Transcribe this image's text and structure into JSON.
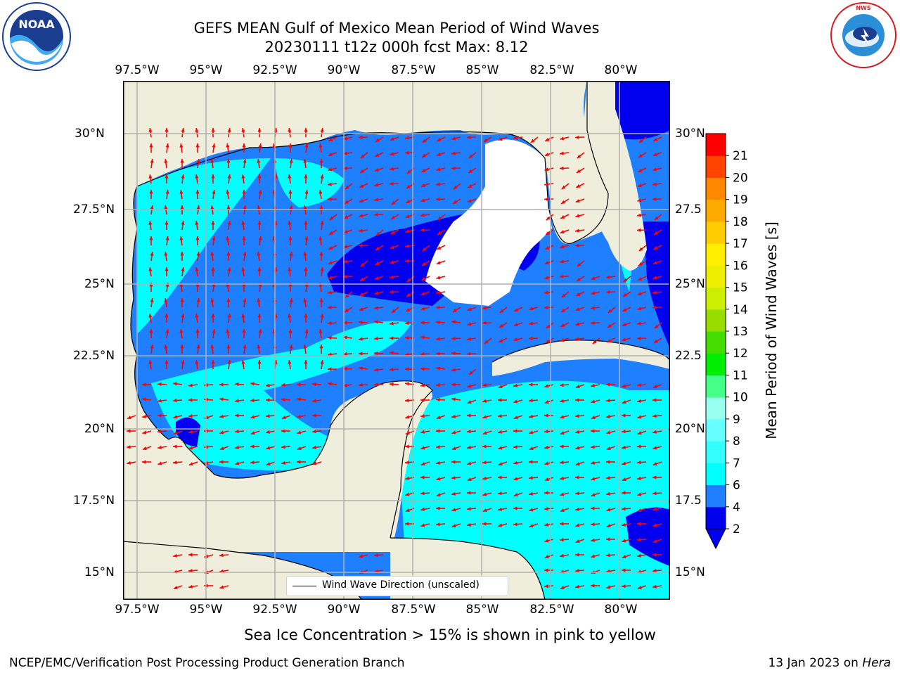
{
  "header": {
    "title_line1": "GEFS MEAN Gulf of Mexico Mean Period of Wind Waves",
    "title_line2": "20230111 t12z 000h fcst   Max: 8.12"
  },
  "logos": {
    "left_text": "NOAA",
    "left_ring_text": "NATIONAL OCEANIC AND ATMOSPHERIC ADMINISTRATION · U.S. DEPARTMENT OF COMMERCE",
    "right_ring_text": "NATIONAL WEATHER SERVICE"
  },
  "map": {
    "lon_ticks": [
      "97.5°W",
      "95°W",
      "92.5°W",
      "90°W",
      "87.5°W",
      "85°W",
      "82.5°W",
      "80°W"
    ],
    "lat_ticks_left": [
      "30°N",
      "27.5°N",
      "25°N",
      "22.5°N",
      "20°N",
      "17.5°N",
      "15°N"
    ],
    "lat_ticks_right": [
      "30°N",
      "27.5",
      "25°N",
      "22.5",
      "20°N",
      "17.5",
      "15°N"
    ],
    "legend_label": "Wind Wave Direction (unscaled)",
    "land_color": "#efeddb",
    "arrow_color": "#ff0000"
  },
  "colorbar": {
    "label": "Mean Period of Wind Waves [s]",
    "levels": [
      "2",
      "4",
      "6",
      "7",
      "8",
      "9",
      "10",
      "11",
      "12",
      "13",
      "14",
      "15",
      "16",
      "17",
      "18",
      "19",
      "20",
      "21"
    ],
    "colors": [
      "#0000ee",
      "#1e7fff",
      "#00ffff",
      "#33ffff",
      "#66ffff",
      "#99ffee",
      "#44ff88",
      "#00ee00",
      "#44dd00",
      "#99dd00",
      "#ccee00",
      "#eeee00",
      "#ffee00",
      "#ffcc00",
      "#ffaa00",
      "#ff8800",
      "#ff4400",
      "#ff0000"
    ]
  },
  "footer": {
    "ice_note": "Sea Ice Concentration > 15% is shown in pink to yellow",
    "left": "NCEP/EMC/Verification Post Processing Product Generation Branch",
    "date": "13 Jan 2023 on",
    "machine": "Hera"
  }
}
